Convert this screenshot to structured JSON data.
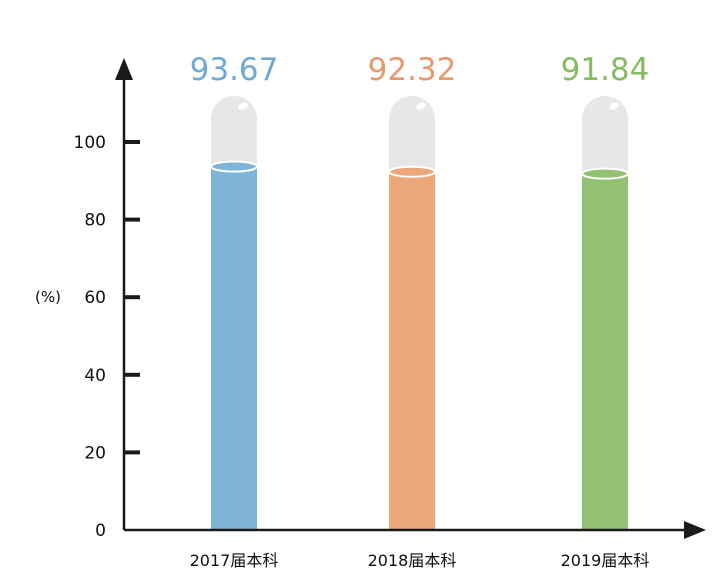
{
  "chart_data": {
    "type": "bar",
    "style": "test-tube",
    "categories": [
      "2017届本科",
      "2018届本科",
      "2019届本科"
    ],
    "values": [
      93.67,
      92.32,
      91.84
    ],
    "value_labels": [
      "93.67",
      "92.32",
      "91.84"
    ],
    "colors": [
      "#7fb4d9",
      "#eba67a",
      "#93c173"
    ],
    "value_label_colors": [
      "#6fa9d6",
      "#e8996b",
      "#86bb63"
    ],
    "tube_color": "#e7e7e7",
    "yticks": [
      0,
      20,
      40,
      60,
      80,
      100
    ],
    "ytick_labels": [
      "0",
      "20",
      "40",
      "60",
      "80",
      "100"
    ],
    "ylabel": "(%)",
    "xlabel": "",
    "title": "",
    "ylim": [
      0,
      100
    ],
    "grid": false,
    "legend": "none"
  }
}
